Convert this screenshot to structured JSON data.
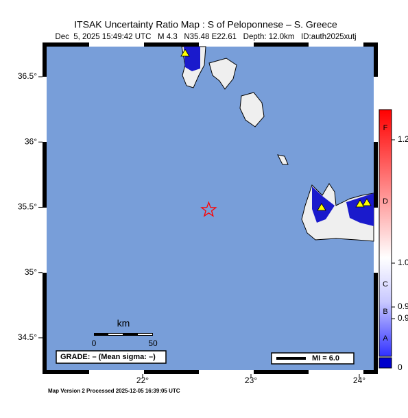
{
  "header": {
    "title": "ITSAK Uncertainty Ratio Map : S of Peloponnese – S. Greece",
    "subtitle": "Dec  5, 2025 15:49:42 UTC   M 4.3   N35.48 E22.61   Depth: 12.0km   ID:auth2025xutj"
  },
  "map": {
    "lonlim": [
      21.114,
      24.133
    ],
    "latlim": [
      34.253,
      36.731
    ],
    "lat_ticks": [
      {
        "value": 36.5,
        "label": "36.5°"
      },
      {
        "value": 36,
        "label": "36°"
      },
      {
        "value": 35.5,
        "label": "35.5°"
      },
      {
        "value": 35,
        "label": "35°"
      },
      {
        "value": 34.5,
        "label": "34.5°"
      }
    ],
    "lon_ticks": [
      {
        "value": 22,
        "label": "22°"
      },
      {
        "value": 23,
        "label": "23°"
      },
      {
        "value": 24,
        "label": "24°"
      }
    ],
    "epicenter": {
      "lon": 22.61,
      "lat": 35.48
    }
  },
  "scale_bar": {
    "title": "km",
    "labels": [
      "0",
      "50"
    ]
  },
  "grade": "GRADE: – (Mean sigma: –)",
  "legend": "MI = 6.0",
  "colorbar": {
    "ticks": [
      "1.2",
      "1.0",
      "0.9",
      "0.9"
    ],
    "zero": "0",
    "grades": [
      "F",
      "D",
      "C",
      "B",
      "A"
    ]
  },
  "footer": "Map Version 2 Processed 2025-12-05 16:39:05 UTC"
}
